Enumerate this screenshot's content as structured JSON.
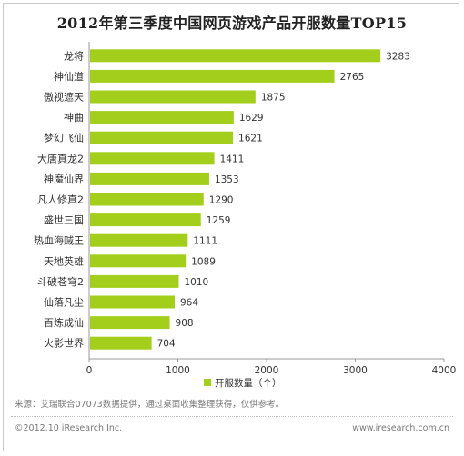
{
  "title": "2012年第三季度中国网页游戏产品开服数量TOP15",
  "chart_data": {
    "type": "bar",
    "orientation": "horizontal",
    "categories": [
      "龙将",
      "神仙道",
      "傲视遮天",
      "神曲",
      "梦幻飞仙",
      "大唐真龙2",
      "神魔仙界",
      "凡人修真2",
      "盛世三国",
      "热血海贼王",
      "天地英雄",
      "斗破苍穹2",
      "仙落凡尘",
      "百炼成仙",
      "火影世界"
    ],
    "series": [
      {
        "name": "开服数量（个）",
        "values": [
          3283,
          2765,
          1875,
          1629,
          1621,
          1411,
          1353,
          1290,
          1259,
          1111,
          1089,
          1010,
          964,
          908,
          704
        ]
      }
    ],
    "xlim": [
      0,
      4000
    ],
    "xticks": [
      "0",
      "1000",
      "2000",
      "3000",
      "4000"
    ],
    "grid": false,
    "legend": "bottom-center",
    "bar_color": "#a3cf1c",
    "value_labels": true
  },
  "source_note": "来源：艾瑞联合07073数据提供，通过桌面收集整理获得，仅供参考。",
  "copyright": "©2012.10 iResearch Inc.",
  "website": "www.iresearch.com.cn"
}
